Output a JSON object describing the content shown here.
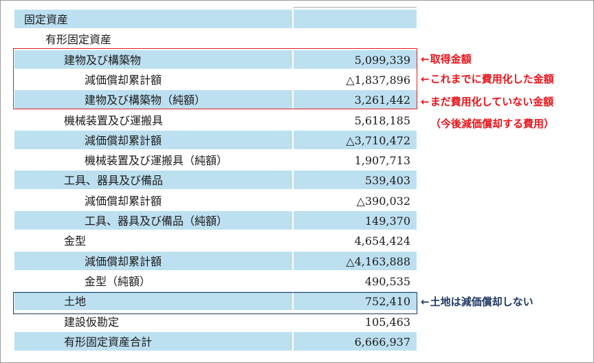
{
  "rows": [
    {
      "label": "固定資産",
      "value": "",
      "indent": 0,
      "shade": true
    },
    {
      "label": "有形固定資産",
      "value": "",
      "indent": 1,
      "shade": false
    },
    {
      "label": "建物及び構築物",
      "value": "5,099,339",
      "indent": 2,
      "shade": true
    },
    {
      "label": "減価償却累計額",
      "value": "△1,837,896",
      "indent": 3,
      "shade": false
    },
    {
      "label": "建物及び構築物（純額）",
      "value": "3,261,442",
      "indent": 3,
      "shade": true
    },
    {
      "label": "機械装置及び運搬具",
      "value": "5,618,185",
      "indent": 2,
      "shade": false
    },
    {
      "label": "減価償却累計額",
      "value": "△3,710,472",
      "indent": 3,
      "shade": true
    },
    {
      "label": "機械装置及び運搬具（純額）",
      "value": "1,907,713",
      "indent": 3,
      "shade": false
    },
    {
      "label": "工具、器具及び備品",
      "value": "539,403",
      "indent": 2,
      "shade": true
    },
    {
      "label": "減価償却累計額",
      "value": "△390,032",
      "indent": 3,
      "shade": false
    },
    {
      "label": "工具、器具及び備品（純額）",
      "value": "149,370",
      "indent": 3,
      "shade": true
    },
    {
      "label": "金型",
      "value": "4,654,424",
      "indent": 2,
      "shade": false
    },
    {
      "label": "減価償却累計額",
      "value": "△4,163,888",
      "indent": 3,
      "shade": true
    },
    {
      "label": "金型（純額）",
      "value": "490,535",
      "indent": 3,
      "shade": false
    },
    {
      "label": "土地",
      "value": "752,410",
      "indent": 2,
      "shade": true
    },
    {
      "label": "建設仮勘定",
      "value": "105,463",
      "indent": 2,
      "shade": false
    },
    {
      "label": "有形固定資産合計",
      "value": "6,666,937",
      "indent": 2,
      "shade": true
    }
  ],
  "annotations": {
    "acquisition": {
      "arrow": "←",
      "text": "取得金額"
    },
    "expensed": {
      "arrow": "←",
      "text": "これまでに費用化した金額"
    },
    "not_expensed": {
      "arrow": "←",
      "text": "まだ費用化していない金額"
    },
    "future_note": "（今後減価償却する費用）",
    "land": {
      "arrow": "←",
      "text": "土地は減価償却しない"
    }
  },
  "colors": {
    "row_shade": "#bde0f1",
    "red": "#e8141b",
    "navy": "#1f3864"
  }
}
